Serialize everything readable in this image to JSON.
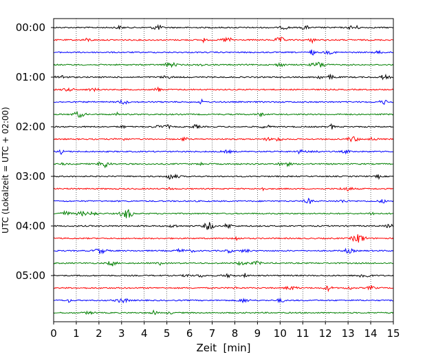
{
  "chart_data": {
    "type": "line",
    "xlabel": "Zeit  [min]",
    "ylabel": "UTC (Lokalzeit = UTC + 02:00)",
    "xlim": [
      0,
      15
    ],
    "x_ticks": [
      0,
      1,
      2,
      3,
      4,
      5,
      6,
      7,
      8,
      9,
      10,
      11,
      12,
      13,
      14,
      15
    ],
    "y_tick_labels": [
      "00:00",
      "01:00",
      "02:00",
      "03:00",
      "04:00",
      "05:00"
    ],
    "x_grid": true,
    "trace_colors": [
      "#000000",
      "#ff0000",
      "#0000ff",
      "#007f00"
    ],
    "rows": [
      {
        "start": "00:00",
        "color": "#000000"
      },
      {
        "start": "00:15",
        "color": "#ff0000"
      },
      {
        "start": "00:30",
        "color": "#0000ff"
      },
      {
        "start": "00:45",
        "color": "#007f00"
      },
      {
        "start": "01:00",
        "color": "#000000"
      },
      {
        "start": "01:15",
        "color": "#ff0000"
      },
      {
        "start": "01:30",
        "color": "#0000ff"
      },
      {
        "start": "01:45",
        "color": "#007f00"
      },
      {
        "start": "02:00",
        "color": "#000000"
      },
      {
        "start": "02:15",
        "color": "#ff0000"
      },
      {
        "start": "02:30",
        "color": "#0000ff"
      },
      {
        "start": "02:45",
        "color": "#007f00"
      },
      {
        "start": "03:00",
        "color": "#000000"
      },
      {
        "start": "03:15",
        "color": "#ff0000"
      },
      {
        "start": "03:30",
        "color": "#0000ff"
      },
      {
        "start": "03:45",
        "color": "#007f00"
      },
      {
        "start": "04:00",
        "color": "#000000"
      },
      {
        "start": "04:15",
        "color": "#ff0000"
      },
      {
        "start": "04:30",
        "color": "#0000ff"
      },
      {
        "start": "04:45",
        "color": "#007f00"
      },
      {
        "start": "05:00",
        "color": "#000000"
      },
      {
        "start": "05:15",
        "color": "#ff0000"
      },
      {
        "start": "05:30",
        "color": "#0000ff"
      },
      {
        "start": "05:45",
        "color": "#007f00"
      }
    ]
  }
}
